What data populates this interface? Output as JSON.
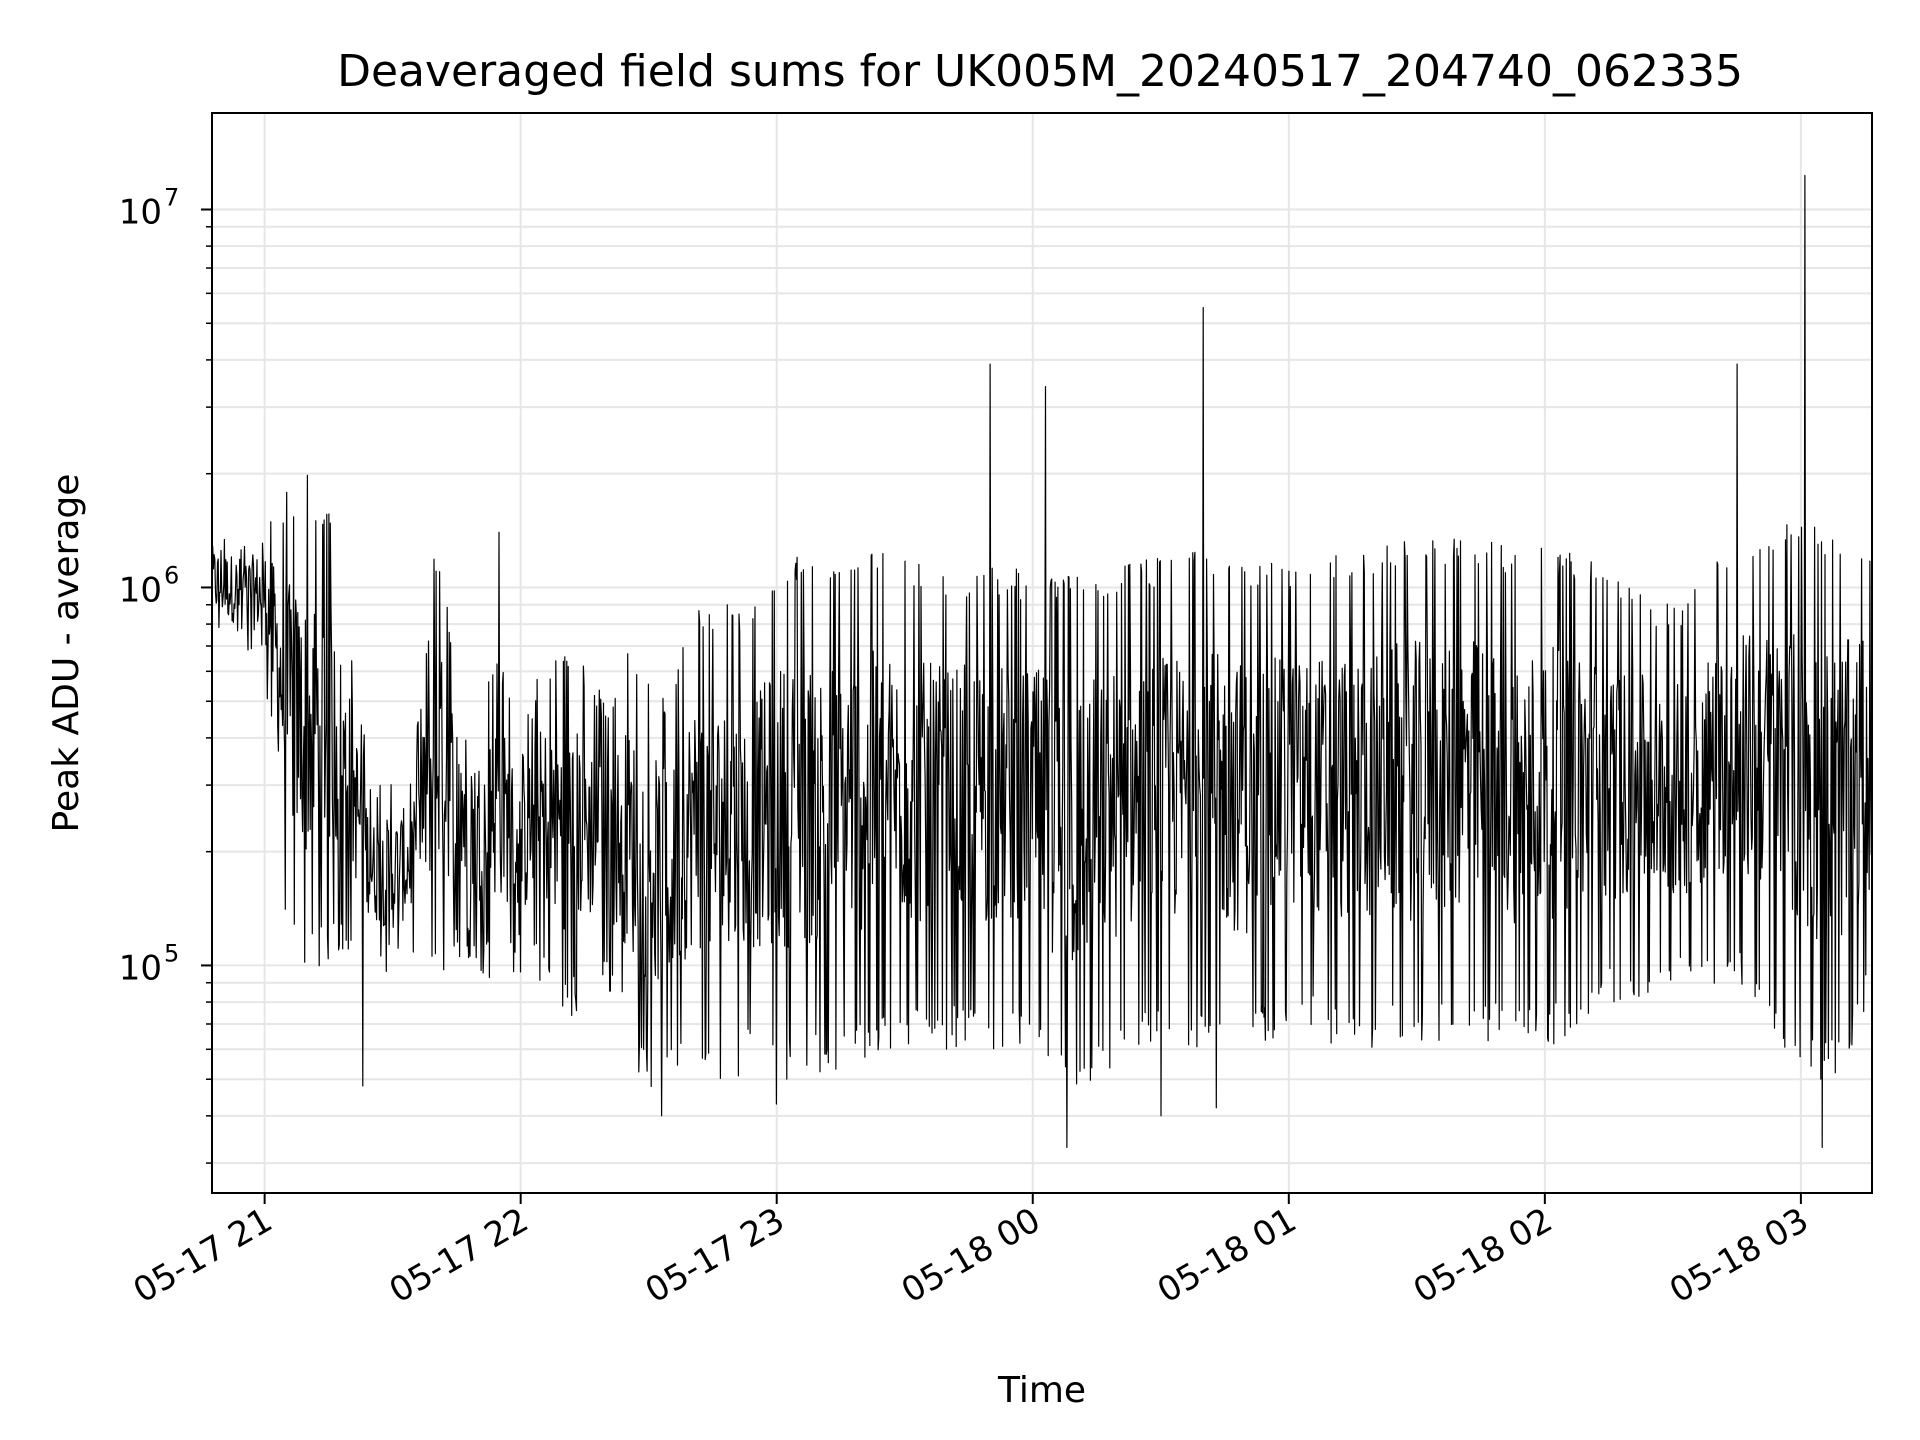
{
  "chart_data": {
    "type": "line",
    "title": "Deaveraged field sums for UK005M_20240517_204740_062335",
    "xlabel": "Time",
    "ylabel": "Peak ADU - average",
    "x_scale": "time",
    "y_scale": "log",
    "grid": true,
    "line_color": "#000000",
    "xlim": [
      "2024-05-17 20:47:40",
      "2024-05-18 03:16:40"
    ],
    "ylim": [
      25000,
      18000000
    ],
    "x_ticks": [
      {
        "t": "2024-05-17 21:00",
        "label": "05-17 21"
      },
      {
        "t": "2024-05-17 22:00",
        "label": "05-17 22"
      },
      {
        "t": "2024-05-17 23:00",
        "label": "05-17 23"
      },
      {
        "t": "2024-05-18 00:00",
        "label": "05-18 00"
      },
      {
        "t": "2024-05-18 01:00",
        "label": "05-18 01"
      },
      {
        "t": "2024-05-18 02:00",
        "label": "05-18 02"
      },
      {
        "t": "2024-05-18 03:00",
        "label": "05-18 03"
      }
    ],
    "y_ticks": [
      {
        "value": 100000,
        "base": "10",
        "exp": "5"
      },
      {
        "value": 1000000,
        "base": "10",
        "exp": "6"
      },
      {
        "value": 10000000,
        "base": "10",
        "exp": "7"
      }
    ],
    "series": [
      {
        "x": [
          "2024-05-17 20:47:40",
          "2024-05-17 20:55",
          "2024-05-17 21:00",
          "2024-05-17 21:05",
          "2024-05-17 21:10",
          "2024-05-17 21:15",
          "2024-05-17 21:20",
          "2024-05-17 21:25",
          "2024-05-17 21:30",
          "2024-05-17 21:35",
          "2024-05-17 21:40",
          "2024-05-17 21:45",
          "2024-05-17 21:50",
          "2024-05-17 21:55",
          "2024-05-17 22:00",
          "2024-05-17 22:05",
          "2024-05-17 22:10",
          "2024-05-17 22:15",
          "2024-05-17 22:20",
          "2024-05-17 22:25",
          "2024-05-17 22:30",
          "2024-05-17 22:35",
          "2024-05-17 22:40",
          "2024-05-17 22:45",
          "2024-05-17 22:50",
          "2024-05-17 22:55",
          "2024-05-17 23:00",
          "2024-05-17 23:10",
          "2024-05-17 23:20",
          "2024-05-17 23:30",
          "2024-05-17 23:40",
          "2024-05-17 23:50",
          "2024-05-18 00:00",
          "2024-05-18 00:10",
          "2024-05-18 00:20",
          "2024-05-18 00:30",
          "2024-05-18 00:40",
          "2024-05-18 00:50",
          "2024-05-18 01:00",
          "2024-05-18 01:10",
          "2024-05-18 01:20",
          "2024-05-18 01:30",
          "2024-05-18 01:40",
          "2024-05-18 01:50",
          "2024-05-18 02:00",
          "2024-05-18 02:10",
          "2024-05-18 02:20",
          "2024-05-18 02:30",
          "2024-05-18 02:40",
          "2024-05-18 02:50",
          "2024-05-18 03:00",
          "2024-05-18 03:10",
          "2024-05-18 03:16:40"
        ],
        "lo": [
          700000,
          650000,
          600000,
          120000,
          90000,
          100000,
          110000,
          100000,
          90000,
          100000,
          90000,
          100000,
          95000,
          90000,
          95000,
          90000,
          70000,
          75000,
          90000,
          60000,
          45000,
          50000,
          55000,
          50000,
          50000,
          55000,
          50000,
          50000,
          55000,
          60000,
          60000,
          60000,
          60000,
          40000,
          55000,
          60000,
          60000,
          55000,
          70000,
          60000,
          60000,
          60000,
          65000,
          60000,
          60000,
          70000,
          80000,
          80000,
          90000,
          80000,
          50000,
          50000,
          80000
        ],
        "hi": [
          1500000,
          1400000,
          1500000,
          1800000,
          1700000,
          1700000,
          800000,
          300000,
          320000,
          350000,
          1300000,
          700000,
          500000,
          700000,
          400000,
          650000,
          700000,
          650000,
          500000,
          700000,
          650000,
          500000,
          900000,
          900000,
          900000,
          900000,
          1200000,
          1250000,
          1300000,
          1200000,
          1100000,
          1150000,
          1100000,
          1100000,
          1150000,
          1200000,
          1250000,
          1200000,
          1150000,
          1250000,
          1300000,
          1350000,
          1400000,
          1300000,
          1300000,
          1200000,
          1000000,
          900000,
          1200000,
          1400000,
          1500000,
          1400000,
          1400000
        ],
        "spikes": [
          {
            "t": "2024-05-17 21:10",
            "value": 1980000
          },
          {
            "t": "2024-05-17 21:55",
            "value": 1400000
          },
          {
            "t": "2024-05-17 23:50",
            "value": 3900000
          },
          {
            "t": "2024-05-18 00:03",
            "value": 3400000
          },
          {
            "t": "2024-05-18 00:40",
            "value": 5500000
          },
          {
            "t": "2024-05-18 02:45",
            "value": 3900000
          },
          {
            "t": "2024-05-18 03:01",
            "value": 12300000
          }
        ],
        "dips": [
          {
            "t": "2024-05-17 21:23",
            "value": 48000
          },
          {
            "t": "2024-05-17 22:33",
            "value": 40000
          },
          {
            "t": "2024-05-17 23:00",
            "value": 43000
          },
          {
            "t": "2024-05-18 00:08",
            "value": 33000
          },
          {
            "t": "2024-05-18 00:30",
            "value": 40000
          },
          {
            "t": "2024-05-18 00:43",
            "value": 42000
          },
          {
            "t": "2024-05-18 03:05",
            "value": 33000
          }
        ]
      }
    ]
  }
}
